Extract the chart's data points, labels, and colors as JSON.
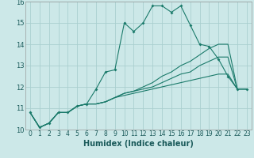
{
  "title": "",
  "xlabel": "Humidex (Indice chaleur)",
  "background_color": "#cce8e8",
  "grid_color": "#aacfcf",
  "line_color": "#1a7a6a",
  "xlim": [
    -0.5,
    23.5
  ],
  "ylim": [
    10,
    16
  ],
  "yticks": [
    10,
    11,
    12,
    13,
    14,
    15,
    16
  ],
  "xticks": [
    0,
    1,
    2,
    3,
    4,
    5,
    6,
    7,
    8,
    9,
    10,
    11,
    12,
    13,
    14,
    15,
    16,
    17,
    18,
    19,
    20,
    21,
    22,
    23
  ],
  "series": [
    [
      10.8,
      10.1,
      10.3,
      10.8,
      10.8,
      11.1,
      11.2,
      11.9,
      12.7,
      12.8,
      15.0,
      14.6,
      15.0,
      15.8,
      15.8,
      15.5,
      15.8,
      14.9,
      14.0,
      13.9,
      13.3,
      12.5,
      11.9,
      11.9
    ],
    [
      10.8,
      10.1,
      10.3,
      10.8,
      10.8,
      11.1,
      11.2,
      11.2,
      11.3,
      11.5,
      11.7,
      11.8,
      12.0,
      12.2,
      12.5,
      12.7,
      13.0,
      13.2,
      13.5,
      13.8,
      14.0,
      14.0,
      11.9,
      11.9
    ],
    [
      10.8,
      10.1,
      10.3,
      10.8,
      10.8,
      11.1,
      11.2,
      11.2,
      11.3,
      11.5,
      11.7,
      11.8,
      11.9,
      12.0,
      12.2,
      12.4,
      12.6,
      12.7,
      13.0,
      13.2,
      13.4,
      13.4,
      11.9,
      11.9
    ],
    [
      10.8,
      10.1,
      10.3,
      10.8,
      10.8,
      11.1,
      11.2,
      11.2,
      11.3,
      11.5,
      11.6,
      11.7,
      11.8,
      11.9,
      12.0,
      12.1,
      12.2,
      12.3,
      12.4,
      12.5,
      12.6,
      12.6,
      11.9,
      11.9
    ]
  ],
  "tick_color": "#1a5a5a",
  "xlabel_fontsize": 7,
  "tick_fontsize": 5.5,
  "ytick_fontsize": 6
}
